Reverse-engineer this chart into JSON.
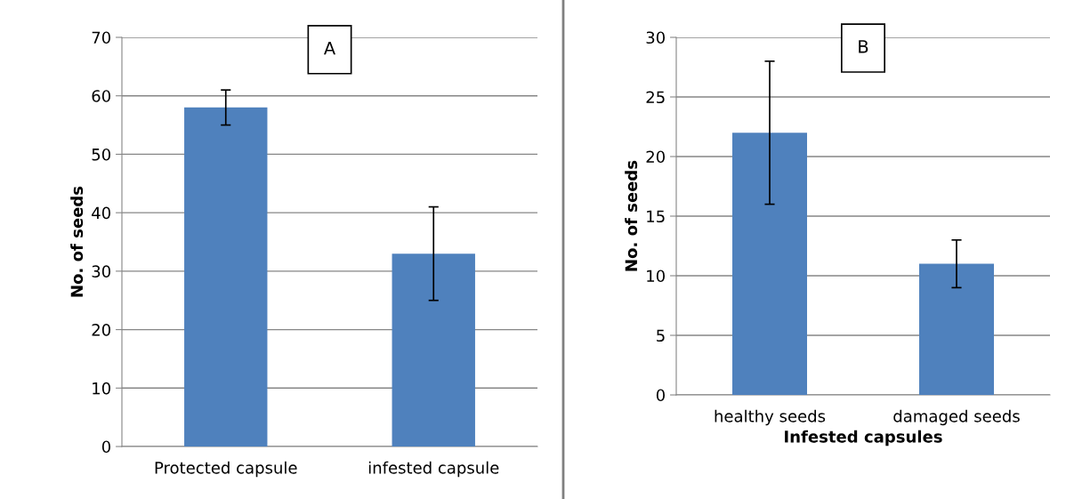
{
  "chart_data": [
    {
      "type": "bar",
      "annotations": [
        "A"
      ],
      "ylabel": "No. of seeds",
      "categories": [
        "Protected capsule",
        "infested capsule"
      ],
      "values": [
        58,
        33
      ],
      "errors": [
        3,
        8
      ],
      "color": "#4f81bd",
      "ylim": [
        0,
        70
      ],
      "yticks": [
        0,
        10,
        20,
        30,
        40,
        50,
        60,
        70
      ],
      "grid": "y"
    },
    {
      "type": "bar",
      "annotations": [
        "B"
      ],
      "ylabel": "No. of seeds",
      "xlabel": "Infested capsules",
      "categories": [
        "healthy seeds",
        "damaged seeds"
      ],
      "values": [
        22,
        11
      ],
      "errors": [
        6,
        2
      ],
      "color": "#4f81bd",
      "ylim": [
        0,
        30
      ],
      "yticks": [
        0,
        5,
        10,
        15,
        20,
        25,
        30
      ],
      "grid": "y"
    }
  ]
}
